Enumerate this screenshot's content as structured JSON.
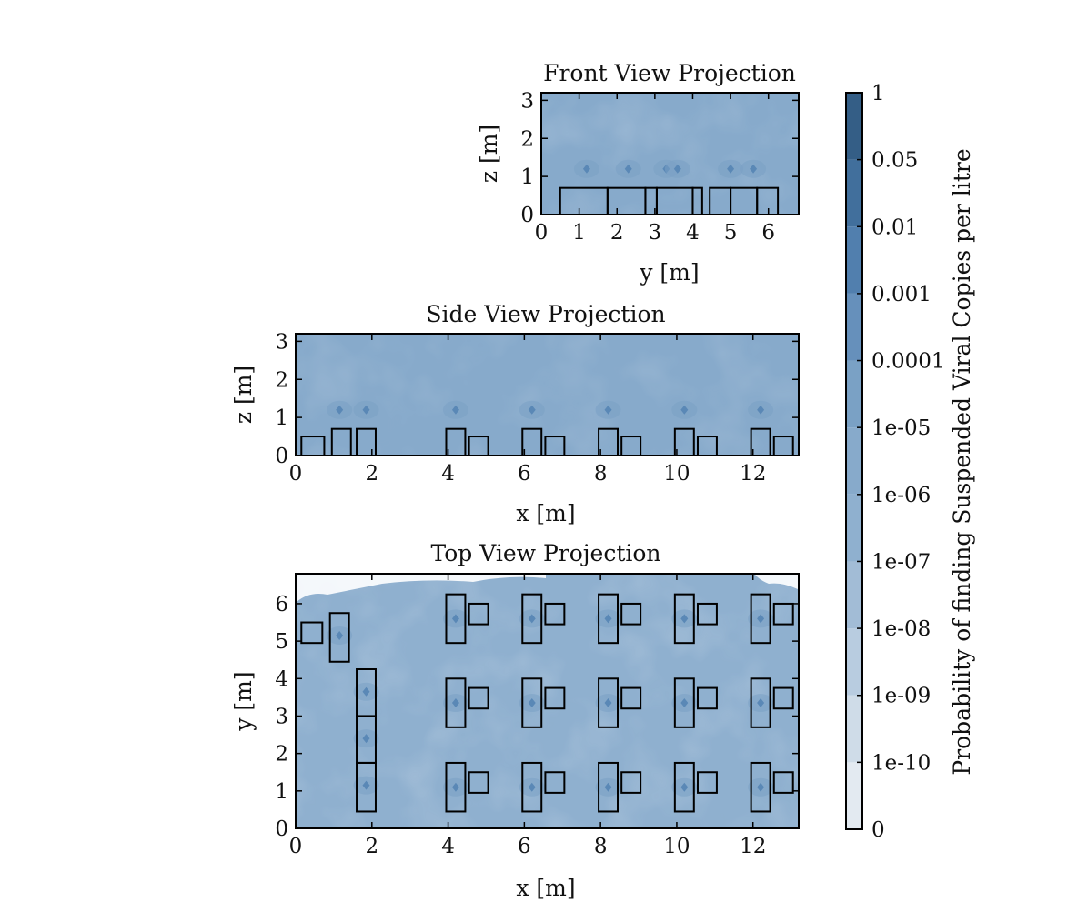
{
  "chart_data": [
    {
      "type": "heatmap",
      "title": "Front View Projection",
      "xlabel": "y [m]",
      "ylabel": "z [m]",
      "xlim": [
        0,
        6.8
      ],
      "ylim": [
        0,
        3.2
      ],
      "xticks": [
        0,
        1,
        2,
        3,
        4,
        5,
        6
      ],
      "yticks": [
        0,
        1,
        2,
        3
      ],
      "grid": false,
      "field_level": "1e-05",
      "objects": [
        {
          "x0": 0.5,
          "x1": 1.75,
          "y0": 0,
          "y1": 0.7
        },
        {
          "x0": 1.75,
          "x1": 2.75,
          "y0": 0,
          "y1": 0.7
        },
        {
          "x0": 2.75,
          "x1": 3.05,
          "y0": 0,
          "y1": 0.7
        },
        {
          "x0": 3.05,
          "x1": 4.0,
          "y0": 0,
          "y1": 0.7
        },
        {
          "x0": 4.0,
          "x1": 4.25,
          "y0": 0,
          "y1": 0.7
        },
        {
          "x0": 4.45,
          "x1": 5.0,
          "y0": 0,
          "y1": 0.7
        },
        {
          "x0": 5.0,
          "x1": 5.7,
          "y0": 0,
          "y1": 0.7
        },
        {
          "x0": 5.7,
          "x1": 6.25,
          "y0": 0,
          "y1": 0.7
        }
      ],
      "sources": [
        {
          "x": 1.2,
          "y": 1.2
        },
        {
          "x": 2.3,
          "y": 1.2
        },
        {
          "x": 3.3,
          "y": 1.2
        },
        {
          "x": 3.6,
          "y": 1.2
        },
        {
          "x": 5.0,
          "y": 1.2
        },
        {
          "x": 5.6,
          "y": 1.2
        }
      ]
    },
    {
      "type": "heatmap",
      "title": "Side View Projection",
      "xlabel": "x [m]",
      "ylabel": "z [m]",
      "xlim": [
        0,
        13.2
      ],
      "ylim": [
        0,
        3.2
      ],
      "xticks": [
        0,
        2,
        4,
        6,
        8,
        10,
        12
      ],
      "yticks": [
        0,
        1,
        2,
        3
      ],
      "grid": false,
      "field_level": "1e-05",
      "objects": [
        {
          "x0": 0.15,
          "x1": 0.75,
          "y0": 0,
          "y1": 0.5
        },
        {
          "x0": 0.95,
          "x1": 1.45,
          "y0": 0,
          "y1": 0.7
        },
        {
          "x0": 1.6,
          "x1": 2.1,
          "y0": 0,
          "y1": 0.7
        },
        {
          "x0": 3.95,
          "x1": 4.45,
          "y0": 0,
          "y1": 0.7
        },
        {
          "x0": 4.55,
          "x1": 5.05,
          "y0": 0,
          "y1": 0.5
        },
        {
          "x0": 5.95,
          "x1": 6.45,
          "y0": 0,
          "y1": 0.7
        },
        {
          "x0": 6.55,
          "x1": 7.05,
          "y0": 0,
          "y1": 0.5
        },
        {
          "x0": 7.95,
          "x1": 8.45,
          "y0": 0,
          "y1": 0.7
        },
        {
          "x0": 8.55,
          "x1": 9.05,
          "y0": 0,
          "y1": 0.5
        },
        {
          "x0": 9.95,
          "x1": 10.45,
          "y0": 0,
          "y1": 0.7
        },
        {
          "x0": 10.55,
          "x1": 11.05,
          "y0": 0,
          "y1": 0.5
        },
        {
          "x0": 11.95,
          "x1": 12.45,
          "y0": 0,
          "y1": 0.7
        },
        {
          "x0": 12.55,
          "x1": 13.05,
          "y0": 0,
          "y1": 0.5
        }
      ],
      "sources": [
        {
          "x": 1.15,
          "y": 1.2
        },
        {
          "x": 1.85,
          "y": 1.2
        },
        {
          "x": 4.2,
          "y": 1.2
        },
        {
          "x": 6.2,
          "y": 1.2
        },
        {
          "x": 8.2,
          "y": 1.2
        },
        {
          "x": 10.2,
          "y": 1.2
        },
        {
          "x": 12.2,
          "y": 1.2
        }
      ]
    },
    {
      "type": "heatmap",
      "title": "Top View Projection",
      "xlabel": "x [m]",
      "ylabel": "y [m]",
      "xlim": [
        0,
        13.2
      ],
      "ylim": [
        0,
        6.8
      ],
      "xticks": [
        0,
        2,
        4,
        6,
        8,
        10,
        12
      ],
      "yticks": [
        0,
        1,
        2,
        3,
        4,
        5,
        6
      ],
      "grid": false,
      "field_level": "1e-06",
      "objects": [
        {
          "x0": 0.15,
          "x1": 0.7,
          "y0": 4.95,
          "y1": 5.5
        },
        {
          "x0": 0.9,
          "x1": 1.4,
          "y0": 4.45,
          "y1": 5.75
        },
        {
          "x0": 1.6,
          "x1": 2.1,
          "y0": 3.0,
          "y1": 4.25
        },
        {
          "x0": 1.6,
          "x1": 2.1,
          "y0": 1.75,
          "y1": 3.0
        },
        {
          "x0": 1.6,
          "x1": 2.1,
          "y0": 0.45,
          "y1": 1.75
        },
        {
          "x0": 3.95,
          "x1": 4.45,
          "y0": 4.95,
          "y1": 6.25
        },
        {
          "x0": 4.55,
          "x1": 5.05,
          "y0": 5.45,
          "y1": 6.0
        },
        {
          "x0": 5.95,
          "x1": 6.45,
          "y0": 4.95,
          "y1": 6.25
        },
        {
          "x0": 6.55,
          "x1": 7.05,
          "y0": 5.45,
          "y1": 6.0
        },
        {
          "x0": 7.95,
          "x1": 8.45,
          "y0": 4.95,
          "y1": 6.25
        },
        {
          "x0": 8.55,
          "x1": 9.05,
          "y0": 5.45,
          "y1": 6.0
        },
        {
          "x0": 9.95,
          "x1": 10.45,
          "y0": 4.95,
          "y1": 6.25
        },
        {
          "x0": 10.55,
          "x1": 11.05,
          "y0": 5.45,
          "y1": 6.0
        },
        {
          "x0": 11.95,
          "x1": 12.45,
          "y0": 4.95,
          "y1": 6.25
        },
        {
          "x0": 12.55,
          "x1": 13.05,
          "y0": 5.45,
          "y1": 6.0
        },
        {
          "x0": 3.95,
          "x1": 4.45,
          "y0": 2.7,
          "y1": 4.0
        },
        {
          "x0": 4.55,
          "x1": 5.05,
          "y0": 3.2,
          "y1": 3.75
        },
        {
          "x0": 5.95,
          "x1": 6.45,
          "y0": 2.7,
          "y1": 4.0
        },
        {
          "x0": 6.55,
          "x1": 7.05,
          "y0": 3.2,
          "y1": 3.75
        },
        {
          "x0": 7.95,
          "x1": 8.45,
          "y0": 2.7,
          "y1": 4.0
        },
        {
          "x0": 8.55,
          "x1": 9.05,
          "y0": 3.2,
          "y1": 3.75
        },
        {
          "x0": 9.95,
          "x1": 10.45,
          "y0": 2.7,
          "y1": 4.0
        },
        {
          "x0": 10.55,
          "x1": 11.05,
          "y0": 3.2,
          "y1": 3.75
        },
        {
          "x0": 11.95,
          "x1": 12.45,
          "y0": 2.7,
          "y1": 4.0
        },
        {
          "x0": 12.55,
          "x1": 13.05,
          "y0": 3.2,
          "y1": 3.75
        },
        {
          "x0": 3.95,
          "x1": 4.45,
          "y0": 0.45,
          "y1": 1.75
        },
        {
          "x0": 4.55,
          "x1": 5.05,
          "y0": 0.95,
          "y1": 1.5
        },
        {
          "x0": 5.95,
          "x1": 6.45,
          "y0": 0.45,
          "y1": 1.75
        },
        {
          "x0": 6.55,
          "x1": 7.05,
          "y0": 0.95,
          "y1": 1.5
        },
        {
          "x0": 7.95,
          "x1": 8.45,
          "y0": 0.45,
          "y1": 1.75
        },
        {
          "x0": 8.55,
          "x1": 9.05,
          "y0": 0.95,
          "y1": 1.5
        },
        {
          "x0": 9.95,
          "x1": 10.45,
          "y0": 0.45,
          "y1": 1.75
        },
        {
          "x0": 10.55,
          "x1": 11.05,
          "y0": 0.95,
          "y1": 1.5
        },
        {
          "x0": 11.95,
          "x1": 12.45,
          "y0": 0.45,
          "y1": 1.75
        },
        {
          "x0": 12.55,
          "x1": 13.05,
          "y0": 0.95,
          "y1": 1.5
        }
      ],
      "sources": [
        {
          "x": 1.15,
          "y": 5.15
        },
        {
          "x": 1.85,
          "y": 3.65
        },
        {
          "x": 1.85,
          "y": 2.4
        },
        {
          "x": 1.85,
          "y": 1.15
        },
        {
          "x": 4.2,
          "y": 5.6
        },
        {
          "x": 6.2,
          "y": 5.6
        },
        {
          "x": 8.2,
          "y": 5.6
        },
        {
          "x": 10.2,
          "y": 5.6
        },
        {
          "x": 12.2,
          "y": 5.6
        },
        {
          "x": 4.2,
          "y": 3.35
        },
        {
          "x": 6.2,
          "y": 3.35
        },
        {
          "x": 8.2,
          "y": 3.35
        },
        {
          "x": 10.2,
          "y": 3.35
        },
        {
          "x": 12.2,
          "y": 3.35
        },
        {
          "x": 4.2,
          "y": 1.1
        },
        {
          "x": 6.2,
          "y": 1.1
        },
        {
          "x": 8.2,
          "y": 1.1
        },
        {
          "x": 10.2,
          "y": 1.1
        },
        {
          "x": 12.2,
          "y": 1.1
        }
      ]
    }
  ],
  "colorbar": {
    "label": "Probability of finding Suspended Viral Copies per litre",
    "levels": [
      "0",
      "1e-10",
      "1e-09",
      "1e-08",
      "1e-07",
      "1e-06",
      "1e-05",
      "0.0001",
      "0.001",
      "0.01",
      "0.05",
      "1"
    ],
    "colors": [
      "#ffffff",
      "#e3eaf1",
      "#cfdce8",
      "#b8cce0",
      "#a2bcd6",
      "#8fb0cf",
      "#87aacb",
      "#7aa1c5",
      "#6690bb",
      "#517fae",
      "#416f9c",
      "#345e86"
    ]
  }
}
